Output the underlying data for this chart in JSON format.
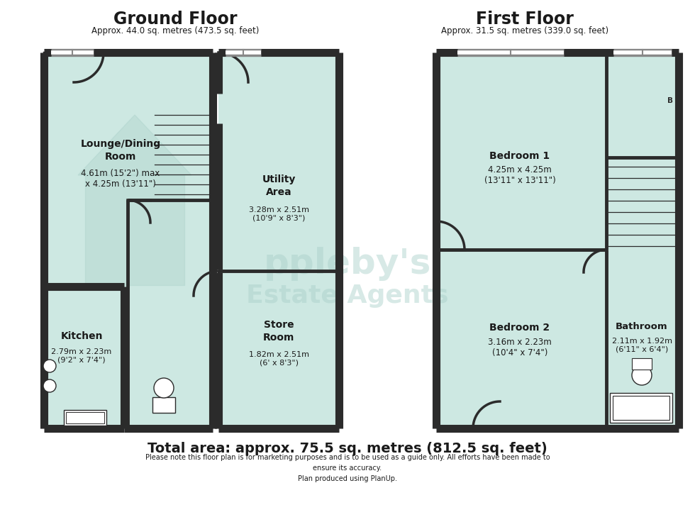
{
  "bg_color": "#ffffff",
  "wall_color": "#2b2b2b",
  "room_fill": "#cde8e2",
  "wall_lw": 7,
  "thin_lw": 2.5,
  "title_ground": "Ground Floor",
  "subtitle_ground": "Approx. 44.0 sq. metres (473.5 sq. feet)",
  "title_first": "First Floor",
  "subtitle_first": "Approx. 31.5 sq. metres (339.0 sq. feet)",
  "total_area": "Total area: approx. 75.5 sq. metres (812.5 sq. feet)",
  "disclaimer": "Please note this floor plan is for marketing purposes and is to be used as a guide only. All efforts have been made to\nensure its accuracy.\nPlan produced using PlanUp.",
  "watermark_color": "#a8cfc8"
}
